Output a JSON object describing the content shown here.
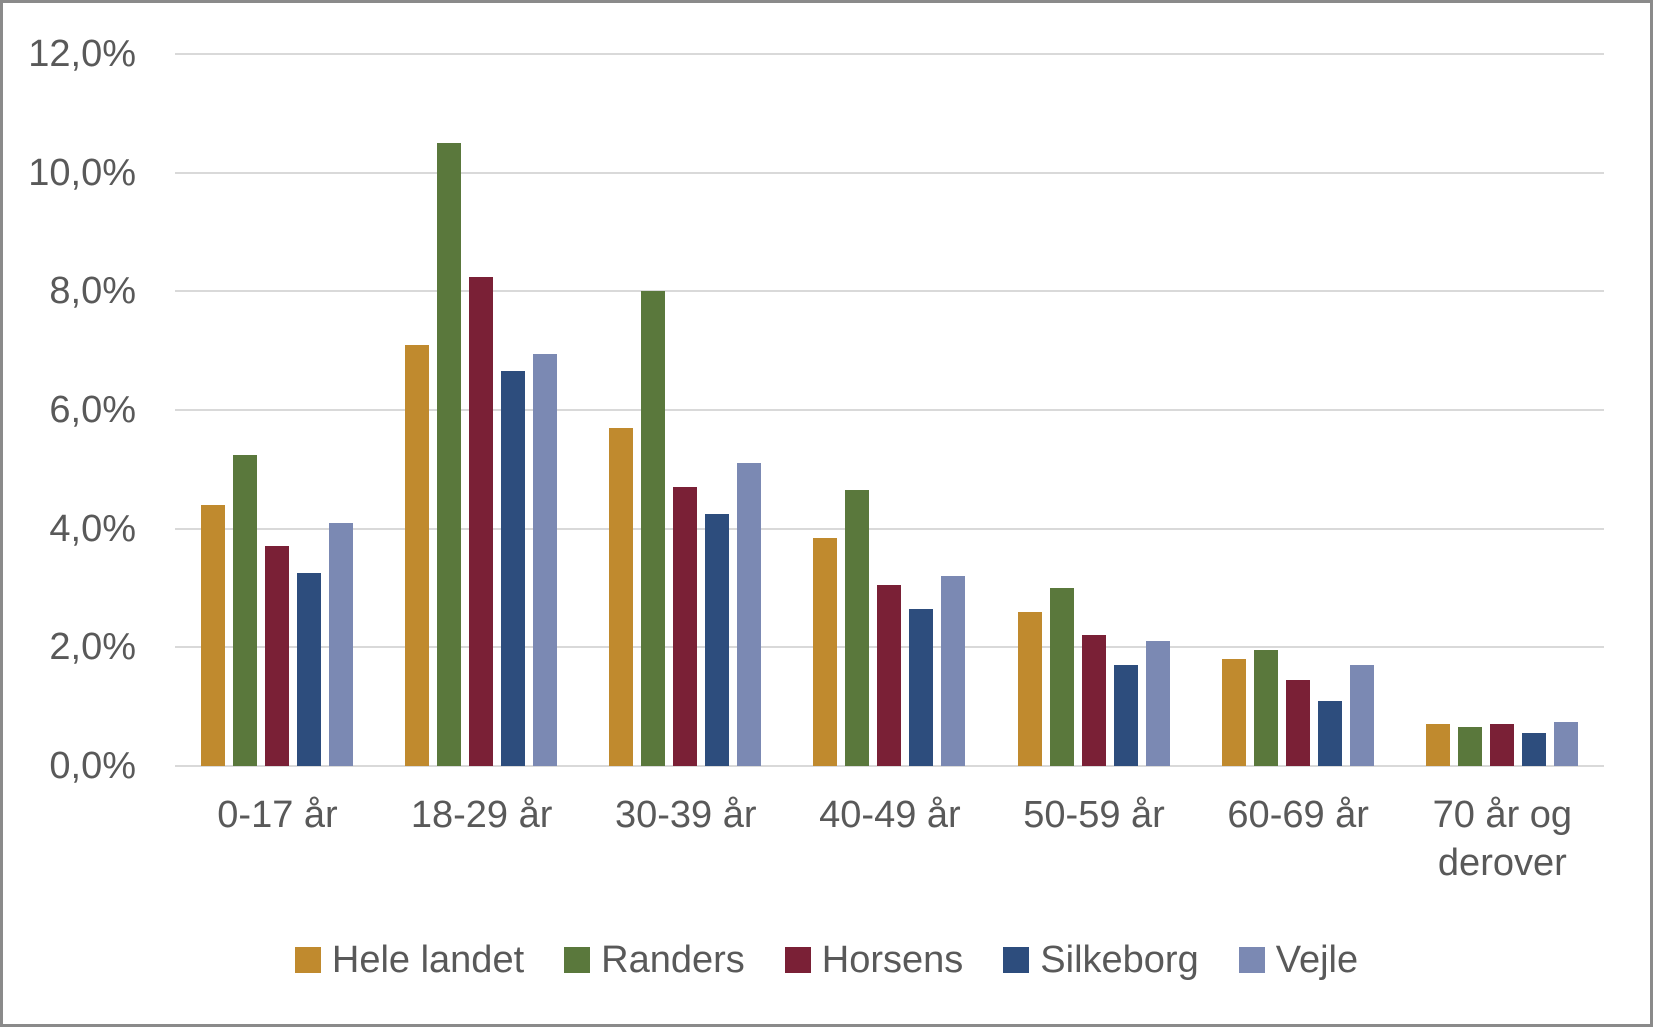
{
  "chart_data": {
    "type": "bar",
    "title": "",
    "xlabel": "",
    "ylabel": "",
    "categories": [
      "0-17 år",
      "18-29 år",
      "30-39 år",
      "40-49 år",
      "50-59 år",
      "60-69 år",
      "70 år og derover"
    ],
    "series": [
      {
        "name": "Hele landet",
        "color": "#C08A2E",
        "values": [
          4.4,
          7.1,
          5.7,
          3.85,
          2.6,
          1.8,
          0.7
        ]
      },
      {
        "name": "Randers",
        "color": "#5A783C",
        "values": [
          5.25,
          10.5,
          8.0,
          4.65,
          3.0,
          1.95,
          0.65
        ]
      },
      {
        "name": "Horsens",
        "color": "#7A2036",
        "values": [
          3.7,
          8.25,
          4.7,
          3.05,
          2.2,
          1.45,
          0.7
        ]
      },
      {
        "name": "Silkeborg",
        "color": "#2D4D7D",
        "values": [
          3.25,
          6.65,
          4.25,
          2.65,
          1.7,
          1.1,
          0.55
        ]
      },
      {
        "name": "Vejle",
        "color": "#7B89B3",
        "values": [
          4.1,
          6.95,
          5.1,
          3.2,
          2.1,
          1.7,
          0.75
        ]
      }
    ],
    "ylim": [
      0,
      12
    ],
    "ytick_step": 2,
    "ytick_labels": [
      "0,0%",
      "2,0%",
      "4,0%",
      "6,0%",
      "8,0%",
      "10,0%",
      "12,0%"
    ],
    "grid": true,
    "legend_position": "bottom",
    "number_format": "danish decimal comma, percent with one decimal"
  },
  "theme": {
    "background": "#FFFFFF",
    "border_color": "#8A8A8A",
    "gridline_color": "#D9D9D9",
    "text_color": "#595959"
  }
}
